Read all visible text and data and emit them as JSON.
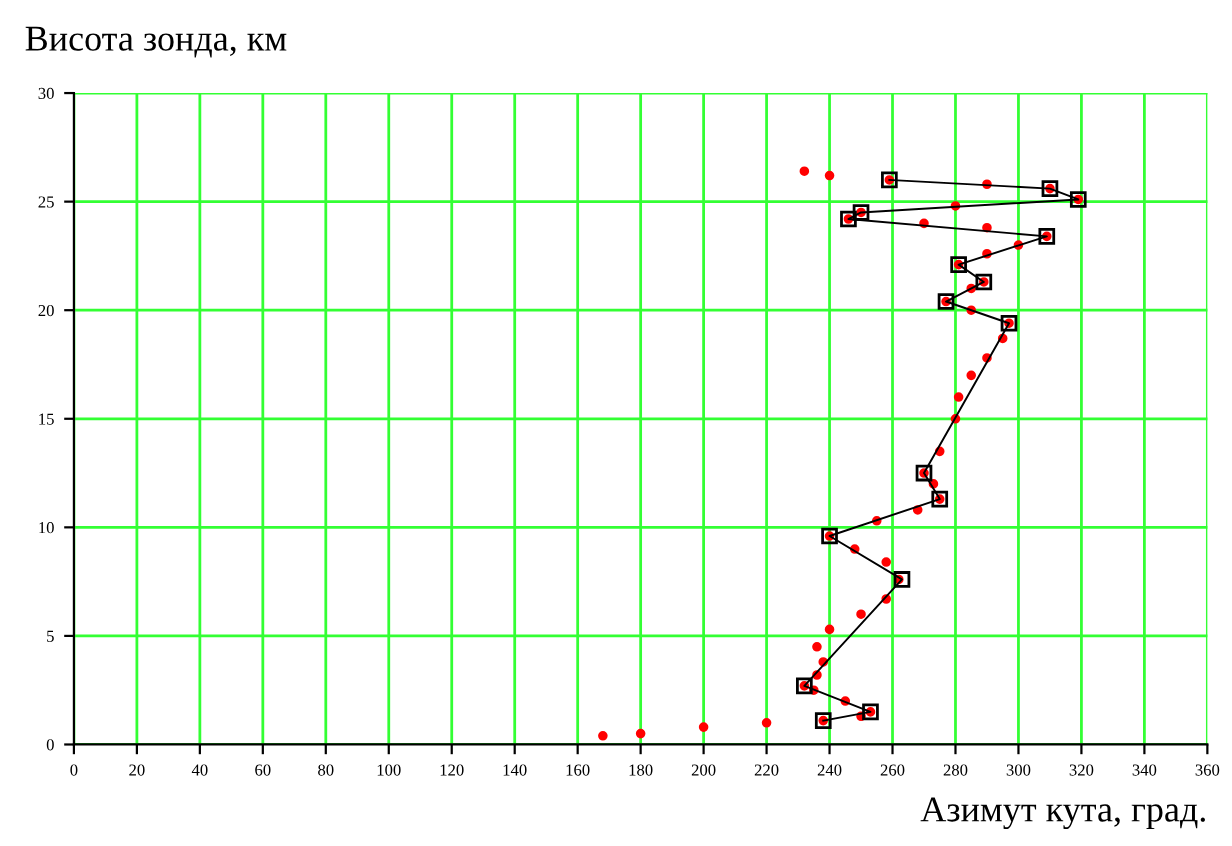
{
  "chart_data": {
    "type": "line",
    "ylabel": "Висота зонда, км",
    "xlabel": "Азимут кута, град.",
    "xlim": [
      0,
      360
    ],
    "xticks": [
      0,
      20,
      40,
      60,
      80,
      100,
      120,
      140,
      160,
      180,
      200,
      220,
      240,
      260,
      280,
      300,
      320,
      340,
      360
    ],
    "ylim": [
      0,
      30
    ],
    "yticks": [
      0,
      5,
      10,
      15,
      20,
      25,
      30
    ],
    "grid": true,
    "series": [
      {
        "type": "scatter",
        "color": "#ff0000",
        "marker": "circle",
        "x": [
          168,
          180,
          200,
          220,
          238,
          250,
          253,
          245,
          235,
          232,
          236,
          238,
          236,
          240,
          250,
          258,
          262,
          258,
          248,
          240,
          255,
          268,
          275,
          273,
          270,
          275,
          280,
          281,
          285,
          290,
          295,
          297,
          285,
          277,
          285,
          289,
          281,
          290,
          300,
          309,
          290,
          270,
          246,
          250,
          280,
          319,
          310,
          290,
          259,
          240,
          232
        ],
        "values": [
          0.4,
          0.5,
          0.8,
          1.0,
          1.1,
          1.3,
          1.5,
          2.0,
          2.5,
          2.7,
          3.2,
          3.8,
          4.5,
          5.3,
          6.0,
          6.7,
          7.6,
          8.4,
          9.0,
          9.6,
          10.3,
          10.8,
          11.3,
          12.0,
          12.5,
          13.5,
          15.0,
          16.0,
          17.0,
          17.8,
          18.7,
          19.4,
          20.0,
          20.4,
          21.0,
          21.3,
          22.1,
          22.6,
          23.0,
          23.4,
          23.8,
          24.0,
          24.2,
          24.5,
          24.8,
          25.1,
          25.6,
          25.8,
          26.0,
          26.2,
          26.4
        ]
      },
      {
        "color": "#000000",
        "marker": "square",
        "x": [
          238,
          253,
          232,
          263,
          240,
          275,
          270,
          297,
          277,
          289,
          281,
          309,
          246,
          250,
          319,
          310,
          259
        ],
        "values": [
          1.1,
          1.5,
          2.7,
          7.6,
          9.6,
          11.3,
          12.5,
          19.4,
          20.4,
          21.3,
          22.1,
          23.4,
          24.2,
          24.5,
          25.1,
          25.6,
          26.0
        ]
      }
    ]
  }
}
